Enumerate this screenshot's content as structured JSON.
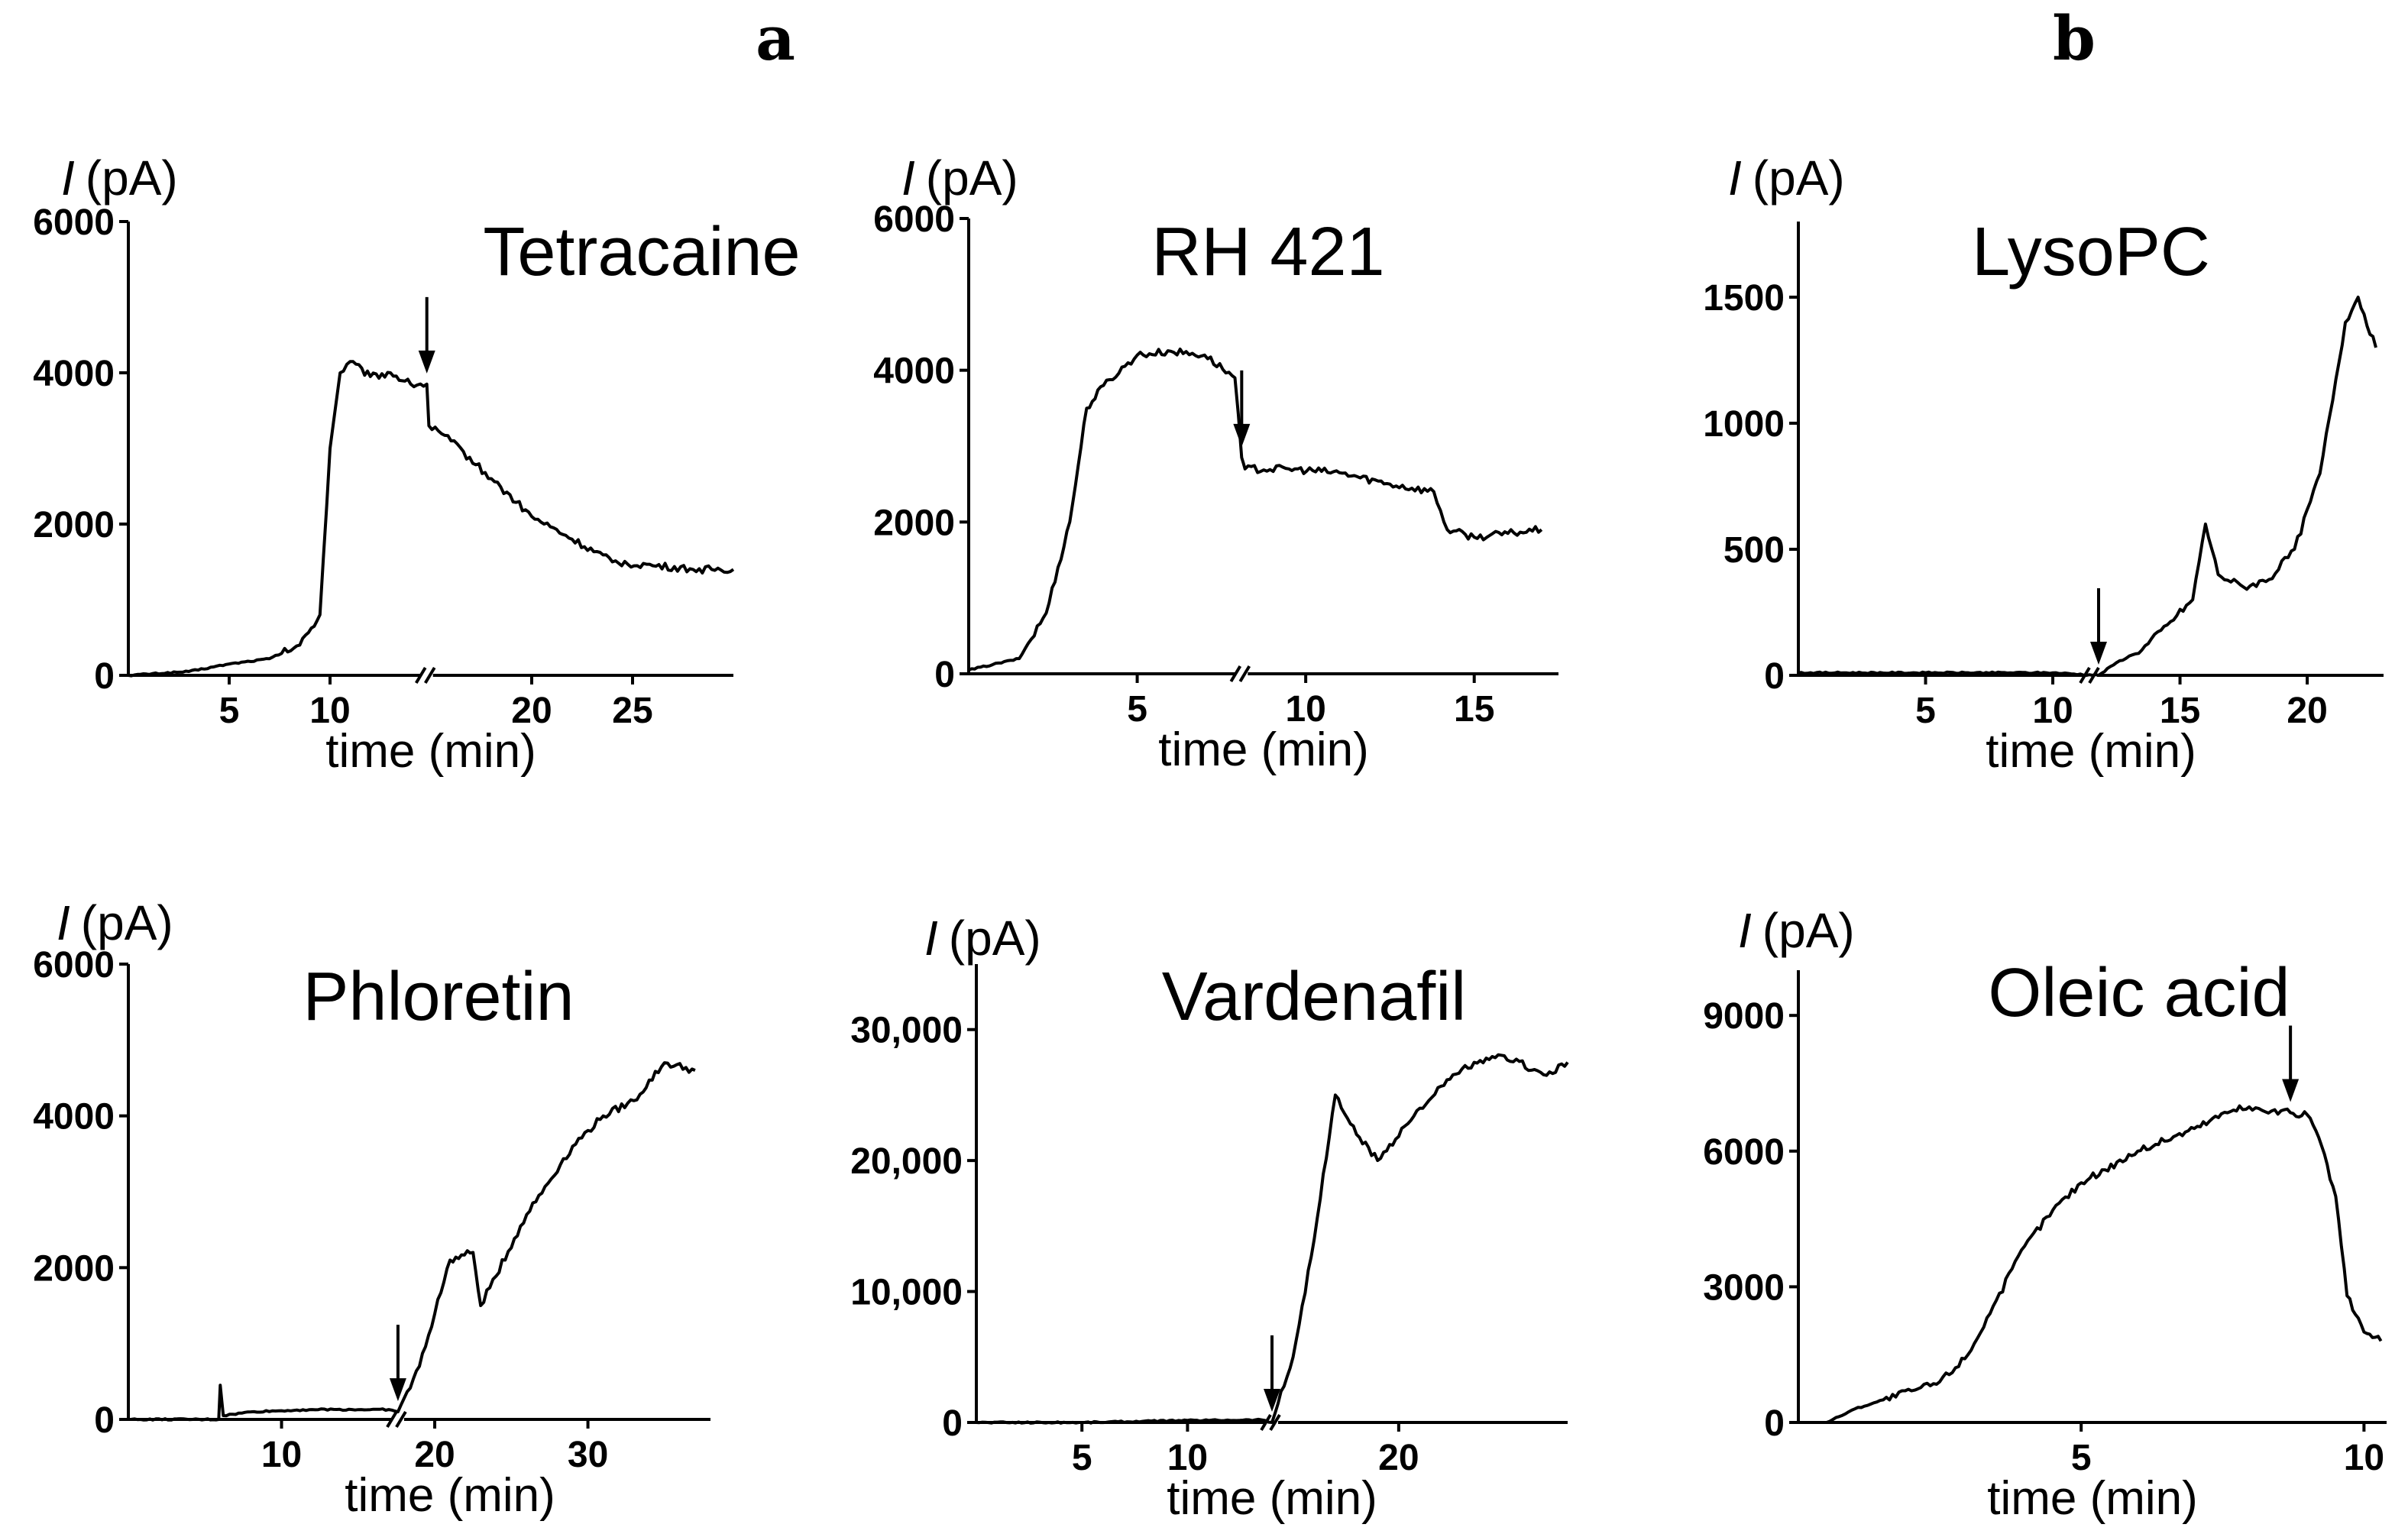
{
  "panel_labels": {
    "a": "a",
    "b": "b"
  },
  "chart_data": [
    {
      "type": "line",
      "title": "Tetracaine",
      "ylabel_symbol": "I",
      "ylabel_unit": "(pA)",
      "xlabel": "time (min)",
      "ylim": [
        0,
        6000
      ],
      "yticks": [
        0,
        2000,
        4000,
        6000
      ],
      "ytick_labels": [
        "0",
        "2000",
        "4000",
        "6000"
      ],
      "xlim": [
        0,
        30
      ],
      "xticks": [
        5,
        10,
        20,
        25
      ],
      "xtick_labels": [
        "5",
        "10",
        "20",
        "25"
      ],
      "axis_break_at": 14.8,
      "arrow_at": 14.8,
      "series": [
        {
          "name": "Tetracaine",
          "x": [
            0,
            3,
            5,
            7,
            8.5,
            9.5,
            10,
            10.5,
            11,
            12,
            13,
            14,
            14.8,
            14.9,
            16,
            18,
            20,
            22,
            24,
            26,
            28,
            30
          ],
          "y": [
            0,
            50,
            150,
            220,
            400,
            800,
            3000,
            4000,
            4150,
            3950,
            4000,
            3850,
            3850,
            3300,
            3100,
            2600,
            2100,
            1800,
            1500,
            1450,
            1400,
            1400
          ]
        }
      ]
    },
    {
      "type": "line",
      "title": "RH 421",
      "ylabel_symbol": "I",
      "ylabel_unit": "(pA)",
      "xlabel": "time (min)",
      "ylim": [
        0,
        6000
      ],
      "yticks": [
        0,
        2000,
        4000,
        6000
      ],
      "ytick_labels": [
        "0",
        "2000",
        "4000",
        "6000"
      ],
      "xlim": [
        0,
        17.5
      ],
      "xticks": [
        5,
        10,
        15
      ],
      "xtick_labels": [
        "5",
        "10",
        "15"
      ],
      "axis_break_at": 8.1,
      "arrow_at": 8.1,
      "series": [
        {
          "name": "RH 421",
          "x": [
            0,
            1.5,
            2.3,
            3.0,
            3.5,
            4.0,
            5.0,
            6.0,
            7.0,
            7.9,
            8.1,
            8.2,
            9.5,
            11,
            12.5,
            13.8,
            14.2,
            15,
            16,
            17
          ],
          "y": [
            50,
            200,
            800,
            2000,
            3500,
            3800,
            4200,
            4250,
            4200,
            3900,
            2850,
            2700,
            2700,
            2650,
            2500,
            2400,
            1900,
            1800,
            1850,
            1900
          ]
        }
      ]
    },
    {
      "type": "line",
      "title": "LysoPC",
      "ylabel_symbol": "I",
      "ylabel_unit": "(pA)",
      "xlabel": "time (min)",
      "ylim": [
        0,
        1800
      ],
      "yticks": [
        0,
        500,
        1000,
        1500
      ],
      "ytick_labels": [
        "0",
        "500",
        "1000",
        "1500"
      ],
      "xlim": [
        0,
        23
      ],
      "xticks": [
        5,
        10,
        15,
        20
      ],
      "xtick_labels": [
        "5",
        "10",
        "15",
        "20"
      ],
      "axis_break_at": 11.5,
      "arrow_at": 11.8,
      "series": [
        {
          "name": "LysoPC",
          "x": [
            0,
            5,
            10,
            11.8,
            12.5,
            13.5,
            14.5,
            15.5,
            16.0,
            16.5,
            17.5,
            18.5,
            19.5,
            20.5,
            21.5,
            22.0,
            22.7
          ],
          "y": [
            10,
            10,
            10,
            0,
            50,
            100,
            200,
            300,
            600,
            400,
            350,
            380,
            500,
            800,
            1400,
            1500,
            1300
          ]
        }
      ]
    },
    {
      "type": "line",
      "title": "Phloretin",
      "ylabel_symbol": "I",
      "ylabel_unit": "(pA)",
      "xlabel": "time (min)",
      "ylim": [
        0,
        6000
      ],
      "yticks": [
        0,
        2000,
        4000,
        6000
      ],
      "ytick_labels": [
        "0",
        "2000",
        "4000",
        "6000"
      ],
      "xlim": [
        0,
        38
      ],
      "xticks": [
        10,
        20,
        30
      ],
      "xtick_labels": [
        "10",
        "20",
        "30"
      ],
      "axis_break_at": 17.6,
      "arrow_at": 17.6,
      "series": [
        {
          "name": "Phloretin",
          "x": [
            0,
            5,
            5.9,
            6.0,
            6.2,
            8,
            12,
            17,
            17.6,
            19,
            21,
            22.5,
            23,
            26,
            29,
            31,
            33,
            35,
            37
          ],
          "y": [
            0,
            0,
            0,
            450,
            50,
            100,
            130,
            130,
            100,
            700,
            2100,
            2200,
            1500,
            2700,
            3600,
            4000,
            4200,
            4700,
            4600
          ]
        }
      ]
    },
    {
      "type": "line",
      "title": "Vardenafil",
      "ylabel_symbol": "I",
      "ylabel_unit": "(pA)",
      "xlabel": "time (min)",
      "ylim": [
        0,
        35000
      ],
      "yticks": [
        0,
        10000,
        20000,
        30000
      ],
      "ytick_labels": [
        "0",
        "10,000",
        "20,000",
        "30,000"
      ],
      "xlim": [
        0,
        28
      ],
      "xticks": [
        5,
        10,
        20
      ],
      "xtick_labels": [
        "5",
        "10",
        "20"
      ],
      "axis_break_at": 14.0,
      "arrow_at": 14.0,
      "series": [
        {
          "name": "Vardenafil",
          "x": [
            0,
            5,
            10,
            13.5,
            14.0,
            15.0,
            16.0,
            17.0,
            18.0,
            19.0,
            21.0,
            23.0,
            25.0,
            27.0,
            28.0
          ],
          "y": [
            0,
            0,
            150,
            200,
            0,
            5000,
            14000,
            25000,
            22000,
            20000,
            24000,
            27000,
            28000,
            26500,
            27500
          ]
        }
      ]
    },
    {
      "type": "line",
      "title": "Oleic acid",
      "ylabel_symbol": "I",
      "ylabel_unit": "(pA)",
      "xlabel": "time (min)",
      "ylim": [
        0,
        10000
      ],
      "yticks": [
        0,
        3000,
        6000,
        9000
      ],
      "ytick_labels": [
        "0",
        "3000",
        "6000",
        "9000"
      ],
      "xlim": [
        0,
        10.4
      ],
      "xticks": [
        5,
        10
      ],
      "xtick_labels": [
        "5",
        "10"
      ],
      "arrow_at": 8.7,
      "series": [
        {
          "name": "Oleic acid",
          "x": [
            0.5,
            1.0,
            1.5,
            2.0,
            2.5,
            3.0,
            3.5,
            4.0,
            4.5,
            5.0,
            6.0,
            7.0,
            7.8,
            8.2,
            8.7,
            9.0,
            9.2,
            9.5,
            9.7,
            10.0,
            10.3
          ],
          "y": [
            0,
            300,
            500,
            700,
            900,
            1500,
            2700,
            3900,
            4700,
            5300,
            6000,
            6500,
            7000,
            6900,
            6850,
            6800,
            6300,
            5000,
            2800,
            2000,
            1800
          ]
        }
      ]
    }
  ]
}
